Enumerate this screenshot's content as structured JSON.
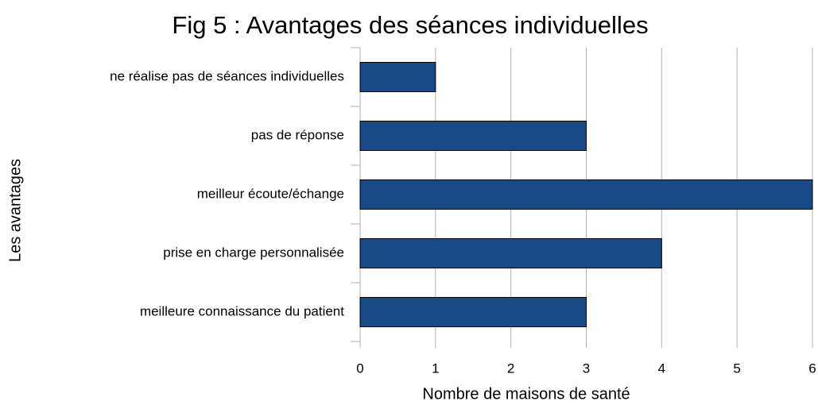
{
  "chart_data": {
    "type": "bar",
    "orientation": "horizontal",
    "title": "Fig 5 : Avantages des séances individuelles",
    "xlabel": "Nombre de maisons de santé",
    "ylabel": "Les avantages",
    "categories": [
      "ne réalise pas de séances individuelles",
      "pas de réponse",
      "meilleur écoute/échange",
      "prise en charge personnalisée",
      "meilleure connaissance du patient"
    ],
    "values": [
      1,
      3,
      6,
      4,
      3
    ],
    "color": "#174a86",
    "xlim": [
      0,
      6
    ],
    "xticks": [
      0,
      1,
      2,
      3,
      4,
      5,
      6
    ],
    "grid": true
  }
}
